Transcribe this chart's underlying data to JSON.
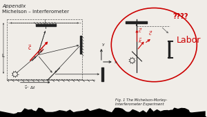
{
  "title_line1": "Appendix",
  "title_line2": "Michelson – Interferometer",
  "fig_caption": "Fig. 1 The Michelson-Morley-\nInterferometer Experiment",
  "labor_text": "Labor",
  "question_marks": "????",
  "bg_color": "#f0ede8",
  "text_color": "#111111",
  "red_color": "#cc0000",
  "dark_color": "#222222",
  "dashed_color": "#555555",
  "L_label": "L",
  "v_label": "$\\vec{v} \\cdot \\Delta t$",
  "c_label": "$c \\cdot \\Delta t$"
}
